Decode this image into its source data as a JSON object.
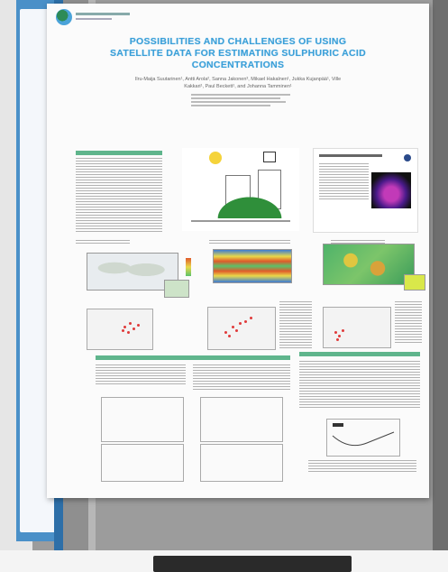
{
  "poster": {
    "title_line1": "POSSIBILITIES AND CHALLENGES OF USING",
    "title_line2": "SATELLITE DATA FOR ESTIMATING SULPHURIC ACID",
    "title_line3": "CONCENTRATIONS",
    "authors_line1": "Ilru-Maija Suutarinen¹, Antti Arola², Sanna Jakonen³, Mikael Hakalnen¹, Jukka Kujanpää¹, Ville",
    "authors_line2": "Kakkari¹, Paul Beckett¹, and Johanna Tamminen¹"
  },
  "colors": {
    "title": "#3a9fd8",
    "section_header": "#5fb58c",
    "board": "#9c9c9c",
    "scatter_points": "#e03a3a"
  },
  "icons": {
    "logo": "institute-logo-circle",
    "sun": "sun-icon",
    "satellite": "satellite-icon"
  }
}
